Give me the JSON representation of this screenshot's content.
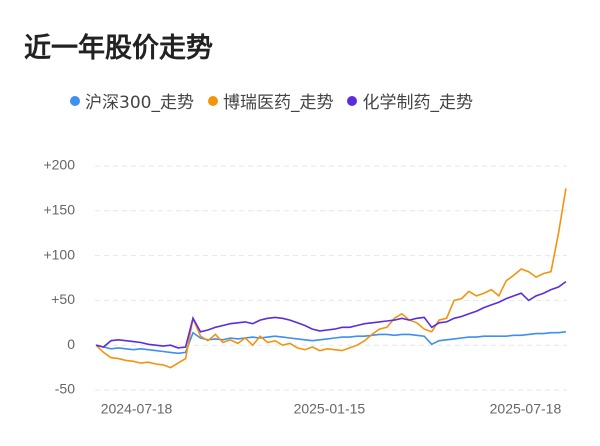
{
  "chart_data": {
    "type": "line",
    "title": "近一年股价走势",
    "x": [
      "2024-06-10",
      "2024-06-17",
      "2024-06-24",
      "2024-07-01",
      "2024-07-08",
      "2024-07-15",
      "2024-07-22",
      "2024-07-29",
      "2024-08-05",
      "2024-08-12",
      "2024-08-19",
      "2024-08-26",
      "2024-09-02",
      "2024-09-09",
      "2024-09-16",
      "2024-09-23",
      "2024-09-30",
      "2024-10-07",
      "2024-10-14",
      "2024-10-21",
      "2024-10-28",
      "2024-11-04",
      "2024-11-11",
      "2024-11-18",
      "2024-11-25",
      "2024-12-02",
      "2024-12-09",
      "2024-12-16",
      "2024-12-23",
      "2024-12-30",
      "2025-01-06",
      "2025-01-13",
      "2025-01-20",
      "2025-01-27",
      "2025-02-03",
      "2025-02-10",
      "2025-02-17",
      "2025-02-24",
      "2025-03-03",
      "2025-03-10",
      "2025-03-17",
      "2025-03-24",
      "2025-03-31",
      "2025-04-07",
      "2025-04-14",
      "2025-04-21",
      "2025-04-28",
      "2025-05-05",
      "2025-05-12",
      "2025-05-19",
      "2025-05-26",
      "2025-06-02",
      "2025-06-09",
      "2025-06-16",
      "2025-06-23",
      "2025-06-30",
      "2025-07-07",
      "2025-07-14",
      "2025-07-21",
      "2025-07-28",
      "2025-08-04",
      "2025-08-11",
      "2025-08-18",
      "2025-08-25"
    ],
    "xlim": [
      "2024-06-09",
      "2025-08-26"
    ],
    "xticks": [
      "2024-07-18",
      "2025-01-15",
      "2025-07-18"
    ],
    "ylim": [
      -50,
      200
    ],
    "yticks": [
      {
        "value": 200,
        "label": "+200"
      },
      {
        "value": 150,
        "label": "+150"
      },
      {
        "value": 100,
        "label": "+100"
      },
      {
        "value": 50,
        "label": "+50"
      },
      0,
      -50
    ],
    "grid": true,
    "series": [
      {
        "name": "沪深300_走势",
        "color": "#3d8ff0",
        "values": [
          0,
          -2,
          -4,
          -3,
          -4,
          -5,
          -4,
          -5,
          -6,
          -7,
          -8,
          -9,
          -8,
          14,
          8,
          6,
          7,
          6,
          8,
          7,
          8,
          9,
          8,
          9,
          10,
          9,
          8,
          7,
          6,
          5,
          6,
          7,
          8,
          9,
          9,
          10,
          10,
          11,
          12,
          12,
          11,
          12,
          12,
          11,
          10,
          1,
          5,
          6,
          7,
          8,
          9,
          9,
          10,
          10,
          10,
          10,
          11,
          11,
          12,
          13,
          13,
          14,
          14,
          15
        ]
      },
      {
        "name": "博瑞医药_走势",
        "color": "#f3940f",
        "values": [
          0,
          -8,
          -14,
          -15,
          -17,
          -18,
          -20,
          -19,
          -21,
          -22,
          -25,
          -20,
          -15,
          30,
          10,
          5,
          12,
          3,
          6,
          2,
          8,
          0,
          10,
          3,
          5,
          0,
          2,
          -3,
          -5,
          -2,
          -6,
          -4,
          -5,
          -6,
          -3,
          0,
          5,
          12,
          18,
          20,
          30,
          35,
          28,
          25,
          18,
          15,
          28,
          30,
          50,
          52,
          60,
          55,
          58,
          62,
          55,
          72,
          78,
          85,
          82,
          76,
          80,
          82,
          125,
          175
        ]
      },
      {
        "name": "化学制药_走势",
        "color": "#5a2ee0",
        "values": [
          0,
          -2,
          5,
          6,
          5,
          4,
          3,
          1,
          0,
          -1,
          0,
          -3,
          -2,
          30,
          15,
          17,
          20,
          22,
          24,
          25,
          26,
          24,
          28,
          30,
          31,
          30,
          28,
          25,
          22,
          18,
          16,
          17,
          18,
          20,
          20,
          22,
          24,
          25,
          26,
          27,
          28,
          30,
          28,
          30,
          31,
          20,
          25,
          26,
          30,
          32,
          35,
          38,
          42,
          45,
          48,
          52,
          55,
          58,
          50,
          55,
          58,
          62,
          65,
          71
        ]
      }
    ]
  }
}
